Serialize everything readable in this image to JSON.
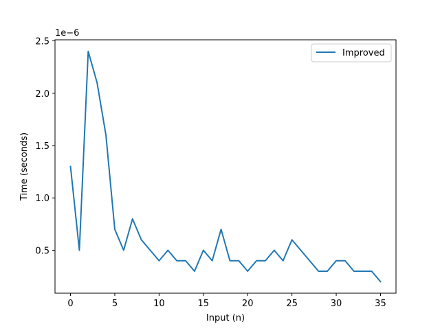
{
  "chart_data": {
    "type": "line",
    "title": "",
    "xlabel": "Input (n)",
    "ylabel": "Time (seconds)",
    "y_offset_label": "1e−6",
    "y_scale_factor": 1e-06,
    "xlim": [
      -1.75,
      36.75
    ],
    "ylim": [
      0.09,
      2.51
    ],
    "x_ticks": [
      0,
      5,
      10,
      15,
      20,
      25,
      30,
      35
    ],
    "y_ticks": [
      0.5,
      1.0,
      1.5,
      2.0,
      2.5
    ],
    "grid": false,
    "legend_position": "top-right",
    "series": [
      {
        "name": "Improved",
        "color": "#1f77b4",
        "x": [
          0,
          1,
          2,
          3,
          4,
          5,
          6,
          7,
          8,
          9,
          10,
          11,
          12,
          13,
          14,
          15,
          16,
          17,
          18,
          19,
          20,
          21,
          22,
          23,
          24,
          25,
          26,
          27,
          28,
          29,
          30,
          31,
          32,
          33,
          34,
          35
        ],
        "y": [
          1.3,
          0.5,
          2.4,
          2.1,
          1.6,
          0.7,
          0.5,
          0.8,
          0.6,
          0.5,
          0.4,
          0.5,
          0.4,
          0.4,
          0.3,
          0.5,
          0.4,
          0.7,
          0.4,
          0.4,
          0.3,
          0.4,
          0.4,
          0.5,
          0.4,
          0.6,
          0.5,
          0.4,
          0.3,
          0.3,
          0.4,
          0.4,
          0.3,
          0.3,
          0.3,
          0.2
        ]
      }
    ]
  }
}
